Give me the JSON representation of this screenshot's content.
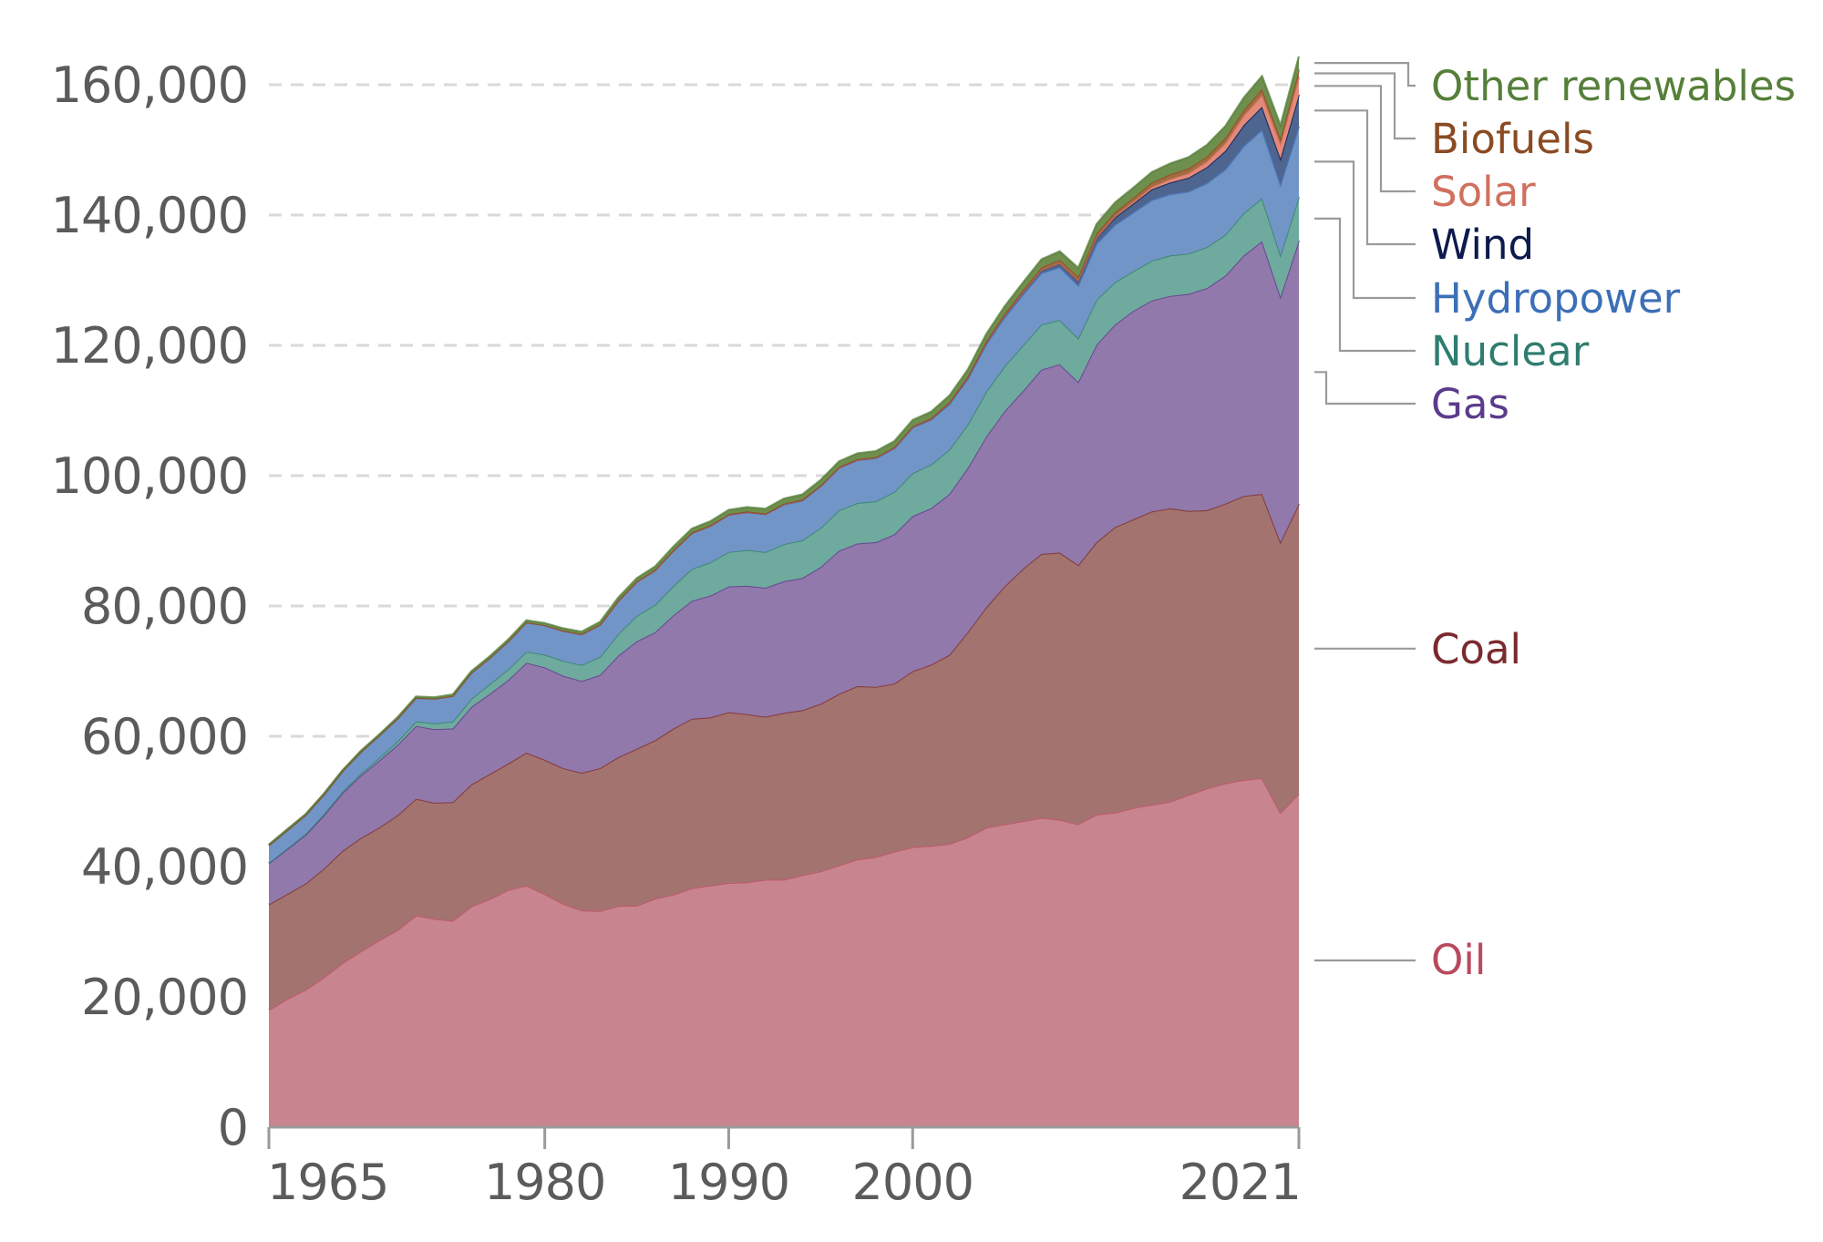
{
  "chart_data": {
    "type": "area",
    "stacked": true,
    "title": "",
    "xlabel": "",
    "ylabel": "",
    "xlim": [
      1965,
      2021
    ],
    "ylim": [
      0,
      160000
    ],
    "grid": true,
    "legend_placement": "right",
    "y_ticks": [
      0,
      20000,
      40000,
      60000,
      80000,
      100000,
      120000,
      140000,
      160000
    ],
    "y_tick_labels": [
      "0",
      "20,000",
      "40,000",
      "60,000",
      "80,000",
      "100,000",
      "120,000",
      "140,000",
      "160,000"
    ],
    "x_ticks": [
      1965,
      1980,
      1990,
      2000,
      2021
    ],
    "x_tick_labels": [
      "1965",
      "1980",
      "1990",
      "2000",
      "2021"
    ],
    "x": [
      1965,
      1966,
      1967,
      1968,
      1969,
      1970,
      1971,
      1972,
      1973,
      1974,
      1975,
      1976,
      1977,
      1978,
      1979,
      1980,
      1981,
      1982,
      1983,
      1984,
      1985,
      1986,
      1987,
      1988,
      1989,
      1990,
      1991,
      1992,
      1993,
      1994,
      1995,
      1996,
      1997,
      1998,
      1999,
      2000,
      2001,
      2002,
      2003,
      2004,
      2005,
      2006,
      2007,
      2008,
      2009,
      2010,
      2011,
      2012,
      2013,
      2014,
      2015,
      2016,
      2017,
      2018,
      2019,
      2020,
      2021
    ],
    "series": [
      {
        "name": "Oil",
        "color": "#c8848f",
        "label_color": "#b84a5e",
        "values": [
          18000,
          19700,
          21100,
          23000,
          25200,
          27000,
          28700,
          30300,
          32500,
          32000,
          31700,
          33900,
          35000,
          36400,
          37100,
          35800,
          34300,
          33300,
          33200,
          34000,
          34000,
          35100,
          35700,
          36700,
          37100,
          37500,
          37600,
          38000,
          38000,
          38700,
          39300,
          40200,
          41100,
          41500,
          42300,
          43000,
          43200,
          43500,
          44500,
          46000,
          46500,
          47000,
          47500,
          47200,
          46500,
          48000,
          48300,
          49000,
          49500,
          50000,
          51000,
          52000,
          52800,
          53300,
          53600,
          48300,
          51200
        ]
      },
      {
        "name": "Coal",
        "color": "#a37370",
        "label_color": "#7a2a2f",
        "values": [
          16200,
          16100,
          16300,
          16700,
          17200,
          17400,
          17300,
          17600,
          17900,
          17800,
          18200,
          18700,
          19200,
          19400,
          20400,
          20600,
          20800,
          21100,
          21900,
          22800,
          24100,
          24300,
          25500,
          26000,
          25800,
          26200,
          25800,
          25000,
          25600,
          25300,
          25700,
          26300,
          26600,
          26100,
          25800,
          27000,
          27800,
          29000,
          31500,
          33800,
          36500,
          38700,
          40500,
          41000,
          39800,
          41800,
          43800,
          44300,
          45000,
          45000,
          43600,
          42700,
          42900,
          43600,
          43600,
          41500,
          44500
        ]
      },
      {
        "name": "Gas",
        "color": "#9179ab",
        "label_color": "#5b3b8c",
        "values": [
          6300,
          6900,
          7500,
          8200,
          8900,
          9600,
          10300,
          10800,
          11200,
          11300,
          11300,
          11900,
          12300,
          12800,
          13800,
          14200,
          14200,
          14100,
          14300,
          15600,
          16500,
          16600,
          17400,
          18100,
          18700,
          19300,
          19700,
          19800,
          20200,
          20300,
          21000,
          22000,
          21900,
          22200,
          22900,
          23800,
          24000,
          24700,
          25200,
          26200,
          26900,
          27300,
          28300,
          28900,
          28100,
          30300,
          31100,
          32000,
          32400,
          32600,
          33300,
          34100,
          35000,
          36900,
          38800,
          37700,
          40400
        ]
      },
      {
        "name": "Nuclear",
        "color": "#6faa9e",
        "label_color": "#2e7d6f",
        "values": [
          70,
          100,
          130,
          180,
          230,
          300,
          420,
          560,
          700,
          880,
          1100,
          1250,
          1500,
          1650,
          1700,
          1950,
          2300,
          2450,
          2800,
          3300,
          3900,
          4200,
          4500,
          4900,
          5100,
          5300,
          5500,
          5500,
          5700,
          5800,
          6000,
          6200,
          6200,
          6300,
          6500,
          6600,
          6700,
          6800,
          6700,
          6900,
          6900,
          7000,
          6900,
          6800,
          6700,
          6900,
          6500,
          6100,
          6100,
          6200,
          6200,
          6300,
          6300,
          6500,
          6600,
          6400,
          6700
        ]
      },
      {
        "name": "Hydropower",
        "color": "#7295c8",
        "label_color": "#3c6fb6",
        "values": [
          2700,
          2800,
          2900,
          3000,
          3100,
          3300,
          3400,
          3500,
          3600,
          3800,
          3900,
          4000,
          4000,
          4300,
          4500,
          4500,
          4600,
          4700,
          4900,
          5100,
          5200,
          5300,
          5400,
          5500,
          5600,
          5700,
          5800,
          5800,
          6100,
          6100,
          6400,
          6500,
          6600,
          6600,
          6700,
          7000,
          6900,
          7000,
          7000,
          7300,
          7500,
          7800,
          7900,
          8100,
          8100,
          8600,
          8800,
          9000,
          9300,
          9400,
          9500,
          9800,
          10000,
          10300,
          10500,
          10800,
          10800
        ]
      },
      {
        "name": "Wind",
        "color": "#4e6590",
        "label_color": "#0d1a4d",
        "values": [
          0,
          0,
          0,
          0,
          0,
          0,
          0,
          0,
          0,
          0,
          0,
          0,
          0,
          0,
          0,
          0,
          0,
          0,
          0,
          0,
          0,
          0,
          0,
          0,
          0,
          10,
          10,
          10,
          20,
          20,
          20,
          30,
          40,
          50,
          60,
          80,
          100,
          130,
          160,
          220,
          280,
          350,
          450,
          590,
          730,
          900,
          1140,
          1360,
          1640,
          1810,
          2140,
          2460,
          2850,
          3200,
          3540,
          4000,
          4870
        ]
      },
      {
        "name": "Solar",
        "color": "#e58a7a",
        "label_color": "#d0705f",
        "values": [
          0,
          0,
          0,
          0,
          0,
          0,
          0,
          0,
          0,
          0,
          0,
          0,
          0,
          0,
          0,
          0,
          0,
          0,
          0,
          0,
          0,
          0,
          0,
          0,
          0,
          0,
          0,
          0,
          0,
          0,
          0,
          0,
          0,
          0,
          0,
          0,
          0,
          10,
          10,
          10,
          10,
          10,
          20,
          30,
          50,
          80,
          170,
          270,
          360,
          500,
          660,
          860,
          1160,
          1440,
          1790,
          2200,
          2700
        ]
      },
      {
        "name": "Biofuels",
        "color": "#a36b3f",
        "label_color": "#8a4b22",
        "values": [
          0,
          0,
          0,
          0,
          0,
          0,
          0,
          0,
          0,
          0,
          0,
          0,
          0,
          0,
          0,
          0,
          30,
          50,
          60,
          80,
          90,
          90,
          90,
          90,
          90,
          90,
          90,
          90,
          100,
          100,
          100,
          110,
          110,
          110,
          110,
          110,
          130,
          150,
          180,
          210,
          250,
          310,
          400,
          530,
          570,
          620,
          630,
          640,
          690,
          740,
          760,
          770,
          810,
          890,
          960,
          910,
          1150
        ]
      },
      {
        "name": "Other renewables",
        "color": "#6e8f4e",
        "label_color": "#567f3a",
        "values": [
          120,
          130,
          140,
          150,
          160,
          170,
          180,
          190,
          200,
          210,
          220,
          240,
          260,
          280,
          300,
          320,
          340,
          360,
          390,
          430,
          470,
          500,
          540,
          580,
          620,
          650,
          680,
          720,
          760,
          800,
          830,
          860,
          880,
          900,
          920,
          960,
          970,
          1000,
          1040,
          1090,
          1130,
          1180,
          1230,
          1280,
          1340,
          1420,
          1470,
          1530,
          1600,
          1660,
          1720,
          1780,
          1830,
          1890,
          1940,
          1980,
          2040
        ]
      }
    ]
  },
  "legend": [
    {
      "name": "Other renewables"
    },
    {
      "name": "Biofuels"
    },
    {
      "name": "Solar"
    },
    {
      "name": "Wind"
    },
    {
      "name": "Hydropower"
    },
    {
      "name": "Nuclear"
    },
    {
      "name": "Gas"
    },
    {
      "name": "Coal"
    },
    {
      "name": "Oil"
    }
  ]
}
